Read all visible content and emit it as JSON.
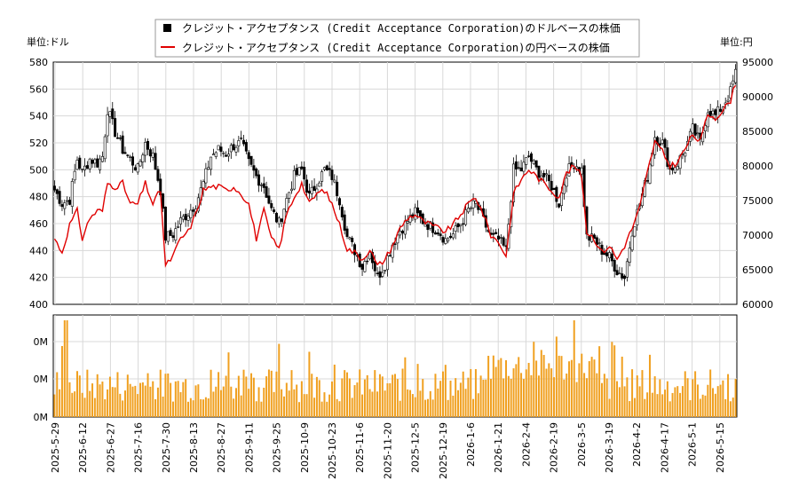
{
  "chart_data": {
    "type": "candlestick-line-bar",
    "legend": {
      "placement": "top-center",
      "entries": [
        {
          "label": "クレジット・アクセプタンス (Credit Acceptance Corporation)のドルベースの株価",
          "marker": "black-square",
          "color": "#000000"
        },
        {
          "label": "クレジット・アクセプタンス (Credit Acceptance Corporation)の円ベースの株価",
          "marker": "red-line",
          "color": "#e00000"
        }
      ]
    },
    "left_unit": "単位:ドル",
    "right_unit": "単位:円",
    "y_left_range": [
      400,
      580
    ],
    "y_left_ticks": [
      "580",
      "560",
      "540",
      "520",
      "500",
      "480",
      "460",
      "440",
      "420",
      "400"
    ],
    "y_right_range": [
      60000,
      95000
    ],
    "y_right_ticks": [
      "95000",
      "90000",
      "85000",
      "80000",
      "75000",
      "70000",
      "65000",
      "60000"
    ],
    "volume_ticks": [
      "0M",
      "0M",
      "0M"
    ],
    "x_ticks": [
      "2025-5-29",
      "2025-6-12",
      "2025-6-27",
      "2025-7-16",
      "2025-7-30",
      "2025-8-13",
      "2025-8-27",
      "2025-9-11",
      "2025-9-25",
      "2025-10-9",
      "2025-10-23",
      "2025-11-6",
      "2025-11-20",
      "2025-12-5",
      "2025-12-19",
      "2026-1-6",
      "2026-1-21",
      "2026-2-4",
      "2026-2-19",
      "2026-3-5",
      "2026-3-19",
      "2026-4-2",
      "2026-4-17",
      "2026-5-1",
      "2026-5-15"
    ],
    "grid": true,
    "usd_close_anchors": [
      [
        0,
        485
      ],
      [
        3,
        475
      ],
      [
        6,
        478
      ],
      [
        9,
        508
      ],
      [
        11,
        498
      ],
      [
        14,
        508
      ],
      [
        17,
        505
      ],
      [
        19,
        510
      ],
      [
        21,
        545
      ],
      [
        24,
        528
      ],
      [
        27,
        515
      ],
      [
        30,
        508
      ],
      [
        33,
        500
      ],
      [
        36,
        520
      ],
      [
        39,
        510
      ],
      [
        42,
        485
      ],
      [
        44,
        450
      ],
      [
        47,
        452
      ],
      [
        50,
        462
      ],
      [
        53,
        468
      ],
      [
        56,
        475
      ],
      [
        59,
        490
      ],
      [
        62,
        510
      ],
      [
        65,
        515
      ],
      [
        68,
        512
      ],
      [
        71,
        518
      ],
      [
        74,
        520
      ],
      [
        77,
        505
      ],
      [
        80,
        495
      ],
      [
        83,
        488
      ],
      [
        86,
        470
      ],
      [
        89,
        460
      ],
      [
        92,
        478
      ],
      [
        95,
        495
      ],
      [
        98,
        500
      ],
      [
        101,
        480
      ],
      [
        104,
        490
      ],
      [
        107,
        500
      ],
      [
        110,
        495
      ],
      [
        113,
        478
      ],
      [
        116,
        450
      ],
      [
        119,
        440
      ],
      [
        122,
        428
      ],
      [
        125,
        440
      ],
      [
        128,
        420
      ],
      [
        131,
        430
      ],
      [
        134,
        445
      ],
      [
        137,
        455
      ],
      [
        140,
        462
      ],
      [
        143,
        468
      ],
      [
        146,
        462
      ],
      [
        149,
        458
      ],
      [
        152,
        455
      ],
      [
        155,
        448
      ],
      [
        158,
        452
      ],
      [
        161,
        460
      ],
      [
        164,
        470
      ],
      [
        167,
        475
      ],
      [
        170,
        462
      ],
      [
        173,
        450
      ],
      [
        176,
        448
      ],
      [
        179,
        440
      ],
      [
        182,
        500
      ],
      [
        185,
        500
      ],
      [
        188,
        510
      ],
      [
        191,
        500
      ],
      [
        194,
        495
      ],
      [
        197,
        488
      ],
      [
        200,
        475
      ],
      [
        203,
        498
      ],
      [
        206,
        505
      ],
      [
        209,
        500
      ],
      [
        211,
        450
      ],
      [
        214,
        448
      ],
      [
        217,
        440
      ],
      [
        220,
        435
      ],
      [
        223,
        425
      ],
      [
        226,
        420
      ],
      [
        229,
        455
      ],
      [
        232,
        475
      ],
      [
        235,
        495
      ],
      [
        238,
        525
      ],
      [
        241,
        520
      ],
      [
        244,
        500
      ],
      [
        247,
        505
      ],
      [
        250,
        515
      ],
      [
        253,
        530
      ],
      [
        256,
        520
      ],
      [
        259,
        545
      ],
      [
        262,
        540
      ],
      [
        265,
        548
      ],
      [
        268,
        558
      ],
      [
        270,
        572
      ]
    ],
    "jpy_anchors": [
      [
        0,
        69500
      ],
      [
        3,
        67500
      ],
      [
        6,
        71500
      ],
      [
        9,
        73500
      ],
      [
        11,
        69500
      ],
      [
        14,
        72500
      ],
      [
        17,
        73500
      ],
      [
        19,
        73500
      ],
      [
        21,
        77500
      ],
      [
        24,
        77000
      ],
      [
        27,
        77500
      ],
      [
        30,
        74500
      ],
      [
        33,
        74500
      ],
      [
        36,
        77500
      ],
      [
        39,
        74500
      ],
      [
        42,
        76500
      ],
      [
        44,
        65500
      ],
      [
        47,
        67000
      ],
      [
        50,
        69500
      ],
      [
        53,
        70500
      ],
      [
        56,
        73000
      ],
      [
        59,
        76500
      ],
      [
        62,
        77000
      ],
      [
        65,
        77000
      ],
      [
        68,
        76500
      ],
      [
        71,
        77000
      ],
      [
        74,
        76000
      ],
      [
        77,
        74500
      ],
      [
        80,
        69500
      ],
      [
        83,
        73500
      ],
      [
        86,
        69500
      ],
      [
        89,
        68000
      ],
      [
        92,
        73000
      ],
      [
        95,
        75500
      ],
      [
        98,
        77500
      ],
      [
        101,
        74500
      ],
      [
        104,
        76000
      ],
      [
        107,
        76500
      ],
      [
        110,
        74500
      ],
      [
        113,
        71500
      ],
      [
        116,
        68000
      ],
      [
        119,
        67500
      ],
      [
        122,
        66500
      ],
      [
        125,
        68000
      ],
      [
        128,
        65500
      ],
      [
        131,
        66500
      ],
      [
        134,
        68500
      ],
      [
        137,
        71000
      ],
      [
        140,
        72500
      ],
      [
        143,
        73000
      ],
      [
        146,
        72000
      ],
      [
        149,
        71500
      ],
      [
        152,
        71000
      ],
      [
        155,
        70500
      ],
      [
        158,
        71500
      ],
      [
        161,
        73000
      ],
      [
        164,
        74500
      ],
      [
        167,
        75500
      ],
      [
        170,
        73000
      ],
      [
        173,
        70000
      ],
      [
        176,
        69000
      ],
      [
        179,
        67000
      ],
      [
        182,
        76000
      ],
      [
        185,
        78000
      ],
      [
        188,
        79500
      ],
      [
        191,
        78500
      ],
      [
        194,
        77500
      ],
      [
        197,
        76500
      ],
      [
        200,
        75500
      ],
      [
        203,
        79000
      ],
      [
        206,
        80000
      ],
      [
        209,
        78500
      ],
      [
        211,
        70500
      ],
      [
        214,
        69500
      ],
      [
        217,
        67500
      ],
      [
        220,
        68500
      ],
      [
        223,
        66500
      ],
      [
        226,
        68500
      ],
      [
        229,
        71000
      ],
      [
        232,
        74000
      ],
      [
        235,
        79000
      ],
      [
        238,
        83500
      ],
      [
        241,
        82000
      ],
      [
        244,
        80000
      ],
      [
        247,
        80500
      ],
      [
        250,
        82500
      ],
      [
        253,
        84500
      ],
      [
        256,
        83500
      ],
      [
        259,
        87500
      ],
      [
        262,
        87000
      ],
      [
        265,
        88000
      ],
      [
        268,
        89500
      ],
      [
        270,
        92000
      ]
    ]
  }
}
